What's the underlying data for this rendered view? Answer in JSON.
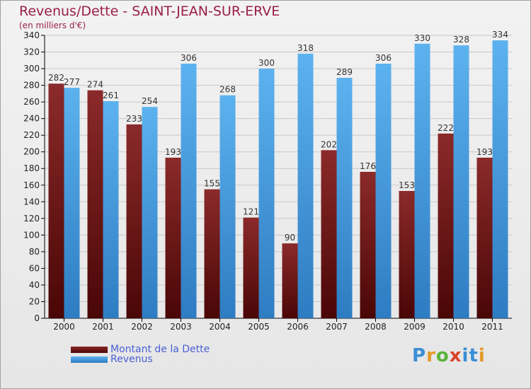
{
  "chart_data": {
    "type": "bar",
    "title": "Revenus/Dette - SAINT-JEAN-SUR-ERVE",
    "subtitle": "(en milliers d'€)",
    "categories": [
      "2000",
      "2001",
      "2002",
      "2003",
      "2004",
      "2005",
      "2006",
      "2007",
      "2008",
      "2009",
      "2010",
      "2011"
    ],
    "series": [
      {
        "name": "Montant de la Dette",
        "color": "#7a1a1a",
        "values": [
          282,
          274,
          233,
          193,
          155,
          121,
          90,
          202,
          176,
          153,
          222,
          193
        ]
      },
      {
        "name": "Revenus",
        "color": "#4aa3e6",
        "values": [
          277,
          261,
          254,
          306,
          268,
          300,
          318,
          289,
          306,
          330,
          328,
          334
        ]
      }
    ],
    "ylim": [
      0,
      340
    ],
    "yticks": [
      0,
      20,
      40,
      60,
      80,
      100,
      120,
      140,
      160,
      180,
      200,
      220,
      240,
      260,
      280,
      300,
      320,
      340
    ],
    "grid": true,
    "legend_position": "bottom-left"
  },
  "logo": {
    "text": "Proxiti",
    "colors": [
      "#3a8ed6",
      "#e39a2a",
      "#5bb33a",
      "#d9452b",
      "#3a8ed6"
    ]
  }
}
